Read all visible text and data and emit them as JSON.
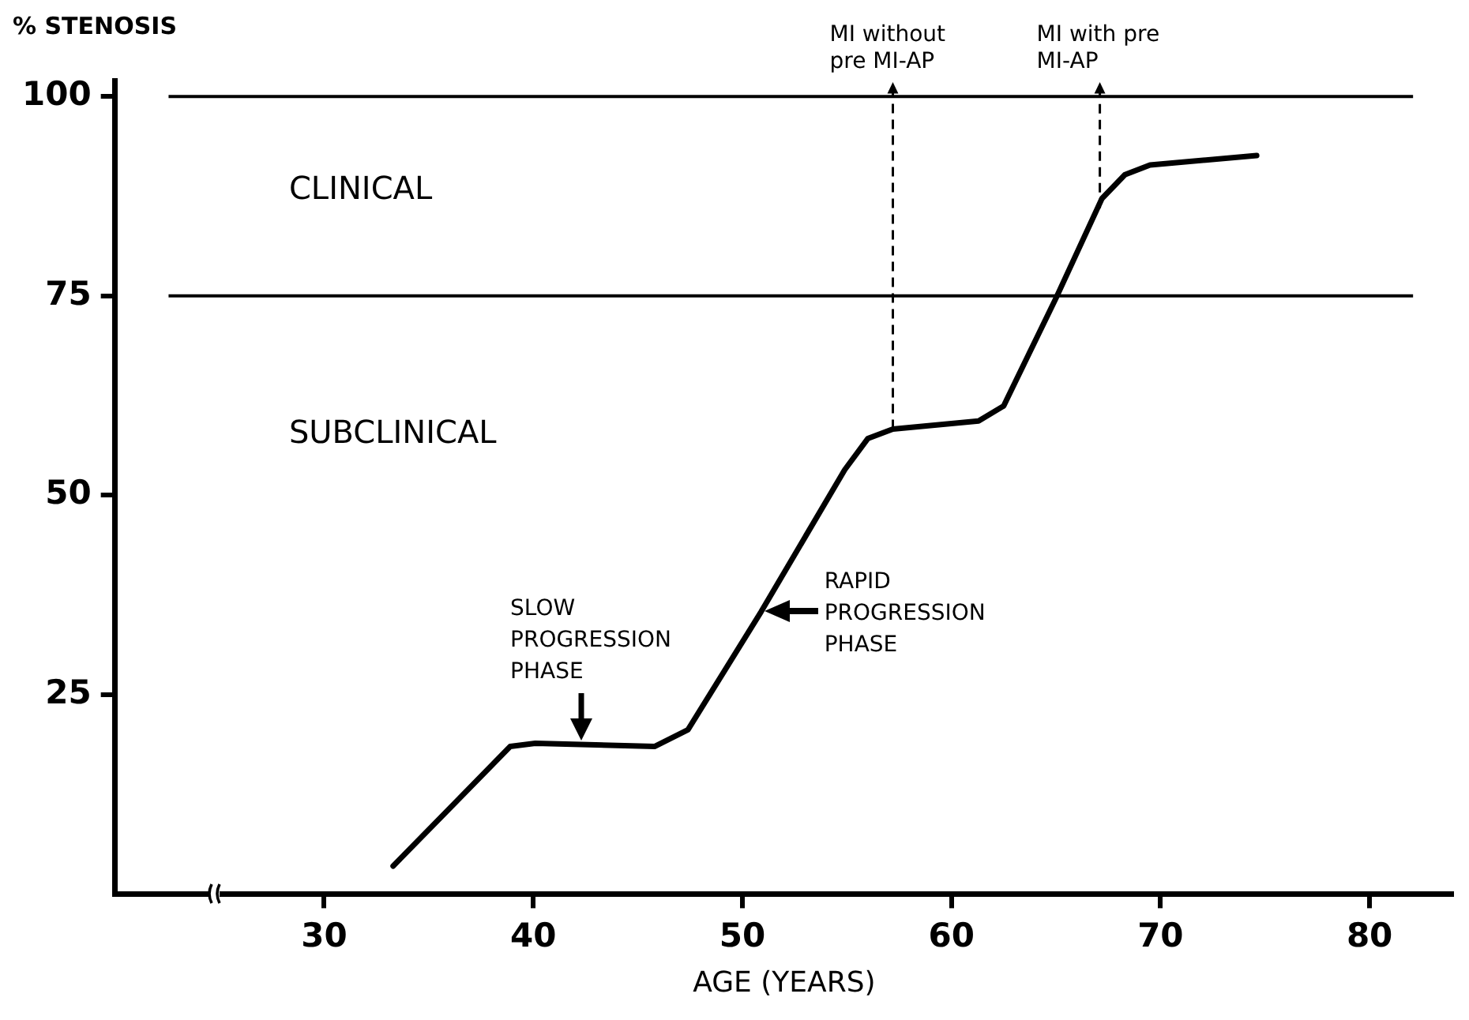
{
  "chart_data": {
    "type": "line",
    "xlabel": "AGE (YEARS)",
    "ylabel": "% STENOSIS",
    "x": [
      33.3,
      38.9,
      40.1,
      45.8,
      47.4,
      50.9,
      54.9,
      56.0,
      57.2,
      61.3,
      62.5,
      65.0,
      67.2,
      68.3,
      69.5,
      74.6
    ],
    "values": [
      3.5,
      18.5,
      18.9,
      18.5,
      20.6,
      35.4,
      53.2,
      57.1,
      58.3,
      59.3,
      61.2,
      74.7,
      87.2,
      90.2,
      91.4,
      92.6
    ],
    "color": "#000000",
    "xlim": [
      20,
      84
    ],
    "xticks": [
      30,
      40,
      50,
      60,
      70,
      80
    ],
    "ylim": [
      0,
      102
    ],
    "yticks": [
      25,
      50,
      75,
      100
    ],
    "grid": false,
    "ref_lines": [
      {
        "axis": "y",
        "value": 100,
        "color": "#000000"
      },
      {
        "axis": "y",
        "value": 75,
        "color": "#000000"
      }
    ],
    "annotations": [
      "CLINICAL",
      "SUBCLINICAL",
      {
        "text": "SLOW PROGRESSION PHASE",
        "x": 42.3,
        "y": 18.7
      },
      {
        "text": "RAPID PROGRESSION PHASE",
        "x": 50.9,
        "y": 35.4
      },
      {
        "text": "MI without pre MI-AP",
        "x": 57.2,
        "y": 58.3
      },
      {
        "text": "MI with pre MI-AP",
        "x": 67.1,
        "y": 86.0
      }
    ]
  }
}
